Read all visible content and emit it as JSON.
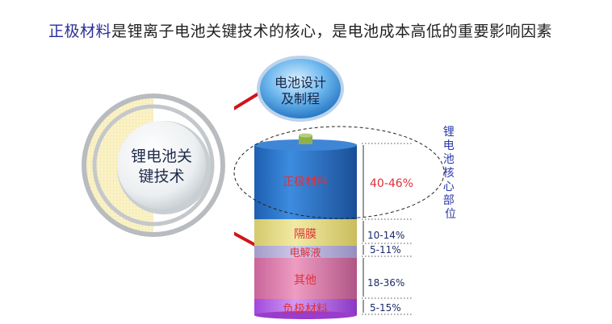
{
  "title": {
    "highlight": "正极材料",
    "rest": "是锂离子电池关键技术的核心，是电池成本高低的重要影响因素"
  },
  "hub": {
    "line1": "锂电池关",
    "line2": "键技术"
  },
  "bubble": {
    "line1": "电池设计",
    "line2": "及制程"
  },
  "layers": [
    {
      "label": "正极材料",
      "share": "40-46%",
      "color": "#2a6fc4"
    },
    {
      "label": "隔膜",
      "share": "10-14%",
      "color": "#e6dc86"
    },
    {
      "label": "电解液",
      "share": "5-11%",
      "color": "#b3aed8"
    },
    {
      "label": "其他",
      "share": "18-36%",
      "color": "#d87aa6"
    },
    {
      "label": "负极材料",
      "share": "5-15%",
      "color": "#b35ee8"
    }
  ],
  "core_label": [
    "锂",
    "电",
    "池",
    "核",
    "心",
    "部",
    "位"
  ],
  "colors": {
    "connector": "#d0141b",
    "label_red": "#e0303a",
    "pct_text": "#1a2a6a",
    "core_text": "#2a3aa8"
  }
}
